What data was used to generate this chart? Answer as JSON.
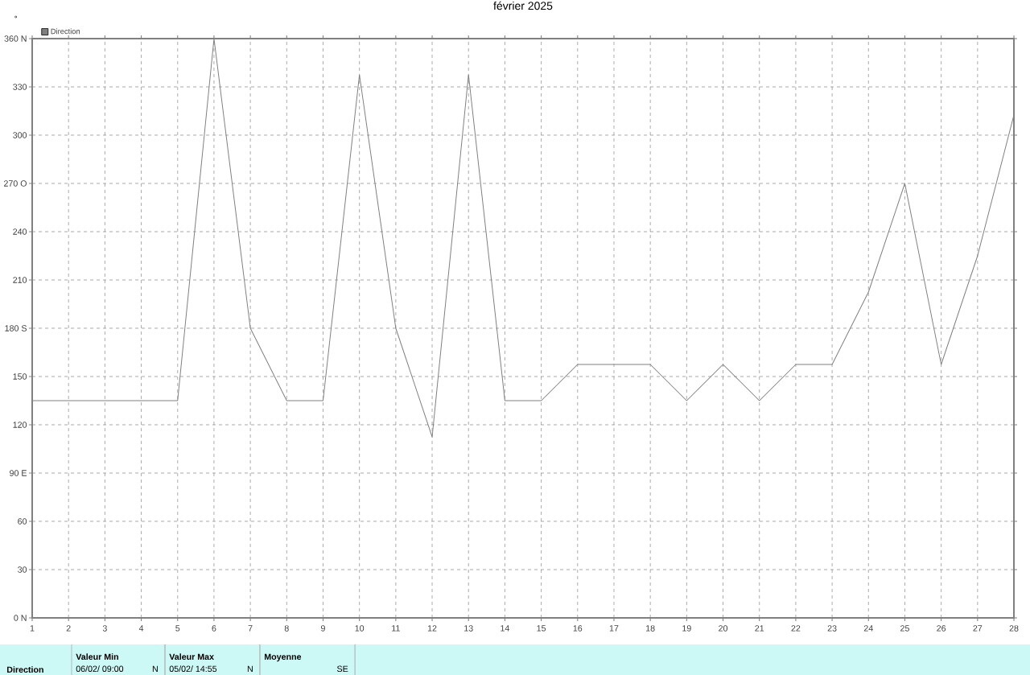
{
  "chart_data": {
    "type": "line",
    "title": "février 2025",
    "ylabel": "°",
    "x": [
      1,
      2,
      3,
      4,
      5,
      6,
      7,
      8,
      9,
      10,
      11,
      12,
      13,
      14,
      15,
      16,
      17,
      18,
      19,
      20,
      21,
      22,
      23,
      24,
      25,
      26,
      27,
      28
    ],
    "series": [
      {
        "name": "Direction",
        "color": "#808080",
        "values": [
          135,
          135,
          135,
          135,
          135,
          360,
          180,
          135,
          135,
          337.5,
          180,
          112.5,
          337.5,
          135,
          135,
          157.5,
          157.5,
          157.5,
          135,
          157.5,
          135,
          157.5,
          157.5,
          202.5,
          270,
          157.5,
          225,
          312.5
        ]
      }
    ],
    "xlim": [
      1,
      28
    ],
    "xticks": [
      1,
      2,
      3,
      4,
      5,
      6,
      7,
      8,
      9,
      10,
      11,
      12,
      13,
      14,
      15,
      16,
      17,
      18,
      19,
      20,
      21,
      22,
      23,
      24,
      25,
      26,
      27,
      28
    ],
    "ylim": [
      0,
      360
    ],
    "yticks": [
      {
        "value": 0,
        "label": "0   N"
      },
      30,
      60,
      {
        "value": 90,
        "label": "90  E"
      },
      120,
      150,
      {
        "value": 180,
        "label": "180 S"
      },
      210,
      240,
      {
        "value": 270,
        "label": "270 O"
      },
      300,
      330,
      {
        "value": 360,
        "label": "360 N"
      }
    ],
    "grid": true,
    "legend": "top left",
    "marker": "none",
    "line_style": "solid",
    "annotations": [
      "Direction",
      "Valeur Min",
      "06/02/  09:00",
      "N",
      "Valeur Max",
      "05/02/  14:55",
      "N",
      "Moyenne",
      "SE"
    ]
  }
}
